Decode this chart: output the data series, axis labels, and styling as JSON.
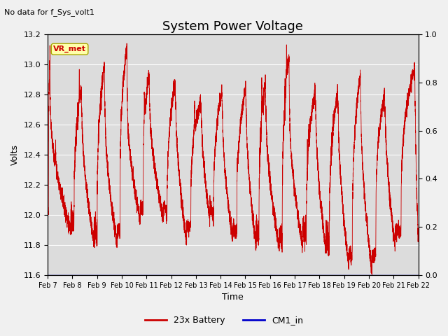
{
  "title": "System Power Voltage",
  "subtitle": "No data for f_Sys_volt1",
  "xlabel": "Time",
  "ylabel": "Volts",
  "ylim_left": [
    11.6,
    13.2
  ],
  "ylim_right": [
    0.0,
    1.0
  ],
  "yticks_left": [
    11.6,
    11.8,
    12.0,
    12.2,
    12.4,
    12.6,
    12.8,
    13.0,
    13.2
  ],
  "yticks_right": [
    0.0,
    0.2,
    0.4,
    0.6,
    0.8,
    1.0
  ],
  "xtick_labels": [
    "Feb 7",
    "Feb 8",
    "Feb 9",
    "Feb 10",
    "Feb 11",
    "Feb 12",
    "Feb 13",
    "Feb 14",
    "Feb 15",
    "Feb 16",
    "Feb 17",
    "Feb 18",
    "Feb 19",
    "Feb 20",
    "Feb 21",
    "Feb 22"
  ],
  "battery_color": "#cc0000",
  "cm1_color": "#0000cc",
  "plot_bg_color": "#dcdcdc",
  "fig_bg_color": "#f0f0f0",
  "legend_label_battery": "23x Battery",
  "legend_label_cm1": "CM1_in",
  "vr_met_label": "VR_met",
  "title_fontsize": 13,
  "label_fontsize": 9,
  "tick_fontsize": 8,
  "n_days": 16,
  "seed": 7
}
